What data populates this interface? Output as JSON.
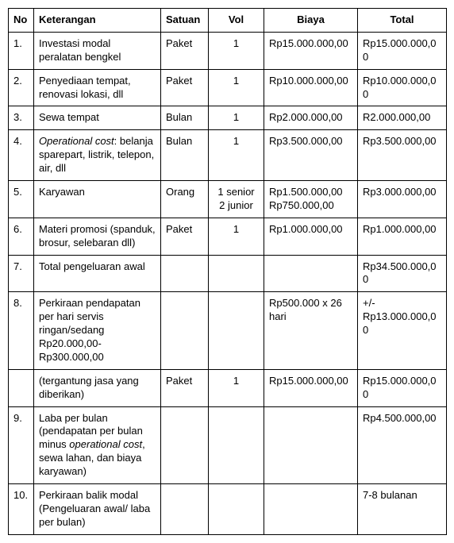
{
  "table": {
    "headers": {
      "no": "No",
      "keterangan": "Keterangan",
      "satuan": "Satuan",
      "vol": "Vol",
      "biaya": "Biaya",
      "total": "Total"
    },
    "rows": [
      {
        "no": "1.",
        "ket": "Investasi modal peralatan bengkel",
        "sat": "Paket",
        "vol": "1",
        "biaya": "Rp15.000.000,00",
        "total": "Rp15.000.000,00"
      },
      {
        "no": "2.",
        "ket": "Penyediaan tempat, renovasi lokasi, dll",
        "sat": "Paket",
        "vol": "1",
        "biaya": "Rp10.000.000,00",
        "total": "Rp10.000.000,00"
      },
      {
        "no": "3.",
        "ket": "Sewa tempat",
        "sat": "Bulan",
        "vol": "1",
        "biaya": "Rp2.000.000,00",
        "total": "R2.000.000,00"
      },
      {
        "no": "4.",
        "ket_pre": "Operational cost",
        "ket_post": ": belanja sparepart, listrik, telepon, air, dll",
        "sat": "Bulan",
        "vol": "1",
        "biaya": "Rp3.500.000,00",
        "total": "Rp3.500.000,00"
      },
      {
        "no": "5.",
        "ket": "Karyawan",
        "sat": "Orang",
        "vol_l1": "1 senior",
        "vol_l2": "2 junior",
        "biaya_l1": "Rp1.500.000,00",
        "biaya_l2": "Rp750.000,00",
        "total": "Rp3.000.000,00"
      },
      {
        "no": "6.",
        "ket": "Materi promosi (spanduk, brosur, selebaran dll)",
        "sat": "Paket",
        "vol": "1",
        "biaya": "Rp1.000.000,00",
        "total": "Rp1.000.000,00"
      },
      {
        "no": "7.",
        "ket": "Total pengeluaran awal",
        "sat": "",
        "vol": "",
        "biaya": "",
        "total": "Rp34.500.000,00"
      },
      {
        "no": "8.",
        "ket": "Perkiraan pendapatan per hari servis ringan/sedang Rp20.000,00-Rp300.000,00",
        "sat": "",
        "vol": "",
        "biaya": "Rp500.000 x 26 hari",
        "total": "+/- Rp13.000.000,00"
      },
      {
        "no": "",
        "ket": "(tergantung jasa yang diberikan)",
        "sat": "Paket",
        "vol": "1",
        "biaya": "Rp15.000.000,00",
        "total": "Rp15.000.000,00"
      },
      {
        "no": "9.",
        "ket_a": "Laba per bulan (pendapatan per bulan minus ",
        "ket_it": "operational cost",
        "ket_b": ", sewa lahan, dan biaya karyawan)",
        "sat": "",
        "vol": "",
        "biaya": "",
        "total": "Rp4.500.000,00"
      },
      {
        "no": "10.",
        "ket": "Perkiraan balik modal (Pengeluaran awal/ laba per bulan)",
        "sat": "",
        "vol": "",
        "biaya": "",
        "total": "7-8 bulanan"
      }
    ]
  }
}
